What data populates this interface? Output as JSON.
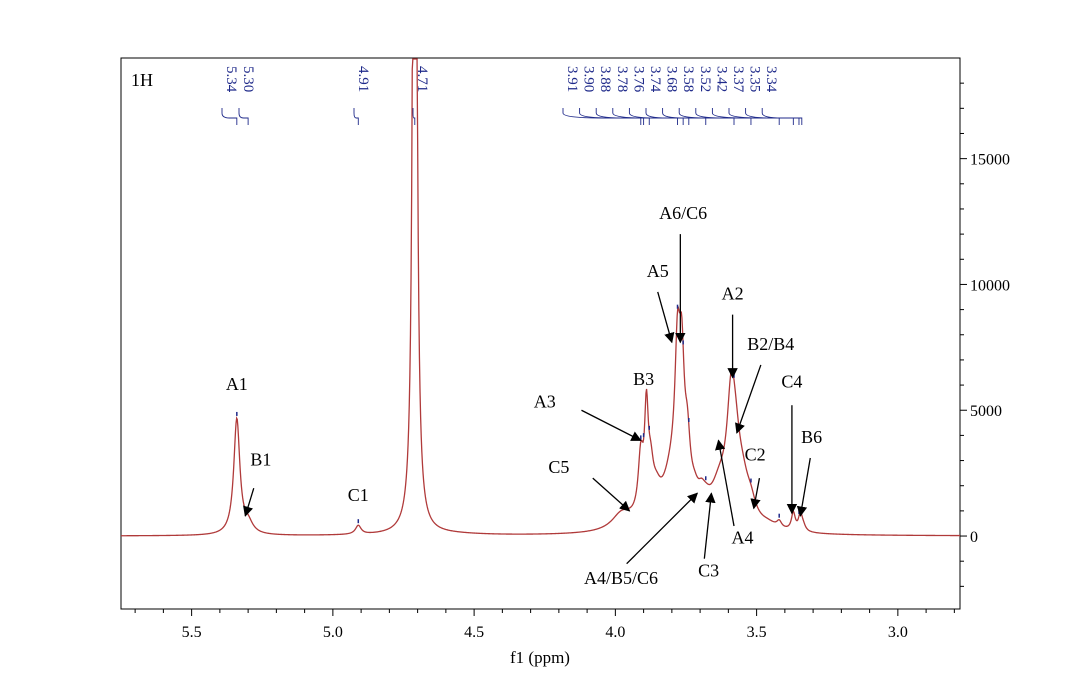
{
  "chart_data": {
    "type": "line",
    "title": "1H",
    "xlabel": "f1 (ppm)",
    "ylabel": "",
    "xlim": [
      5.75,
      2.78
    ],
    "ylim": [
      -2900,
      19000
    ],
    "x_ticks": [
      "5.5",
      "5.0",
      "4.5",
      "4.0",
      "3.5",
      "3.0"
    ],
    "y_ticks": [
      "15000",
      "10000",
      "5000",
      "0"
    ],
    "colors": {
      "spectrum": "#b03a3a",
      "peak_labels": "#1f2a8a",
      "axis": "#000000"
    },
    "peak_picks": [
      "5.34",
      "5.30",
      "4.91",
      "4.71",
      "3.91",
      "3.90",
      "3.88",
      "3.78",
      "3.76",
      "3.74",
      "3.68",
      "3.58",
      "3.52",
      "3.42",
      "3.37",
      "3.35",
      "3.34"
    ],
    "peaks": [
      {
        "x": 5.34,
        "height": 4600,
        "width": 0.013
      },
      {
        "x": 5.3,
        "height": 400,
        "width": 0.02
      },
      {
        "x": 4.91,
        "height": 350,
        "width": 0.012
      },
      {
        "x": 4.71,
        "height": 60000,
        "width": 0.006
      },
      {
        "x": 4.6,
        "height": 60,
        "width": 0.15
      },
      {
        "x": 3.98,
        "height": 500,
        "width": 0.04
      },
      {
        "x": 3.95,
        "height": 250,
        "width": 0.06
      },
      {
        "x": 3.91,
        "height": 2300,
        "width": 0.011
      },
      {
        "x": 3.89,
        "height": 3800,
        "width": 0.008
      },
      {
        "x": 3.875,
        "height": 1500,
        "width": 0.012
      },
      {
        "x": 3.855,
        "height": 800,
        "width": 0.02
      },
      {
        "x": 3.8,
        "height": 2000,
        "width": 0.04
      },
      {
        "x": 3.78,
        "height": 5000,
        "width": 0.011
      },
      {
        "x": 3.765,
        "height": 4800,
        "width": 0.011
      },
      {
        "x": 3.745,
        "height": 2200,
        "width": 0.012
      },
      {
        "x": 3.72,
        "height": 700,
        "width": 0.02
      },
      {
        "x": 3.695,
        "height": 500,
        "width": 0.015
      },
      {
        "x": 3.68,
        "height": 400,
        "width": 0.02
      },
      {
        "x": 3.63,
        "height": 1500,
        "width": 0.04
      },
      {
        "x": 3.59,
        "height": 3900,
        "width": 0.018
      },
      {
        "x": 3.575,
        "height": 1800,
        "width": 0.02
      },
      {
        "x": 3.55,
        "height": 1400,
        "width": 0.03
      },
      {
        "x": 3.52,
        "height": 550,
        "width": 0.02
      },
      {
        "x": 3.46,
        "height": 200,
        "width": 0.04
      },
      {
        "x": 3.42,
        "height": 250,
        "width": 0.01
      },
      {
        "x": 3.37,
        "height": 700,
        "width": 0.008
      },
      {
        "x": 3.345,
        "height": 650,
        "width": 0.008
      },
      {
        "x": 3.335,
        "height": 200,
        "width": 0.01
      }
    ],
    "annotations": [
      {
        "label": "A1",
        "x": 5.34,
        "y": 5800
      },
      {
        "label": "B1",
        "x": 5.255,
        "y": 2800,
        "from": [
          5.28,
          1900
        ],
        "to": [
          5.31,
          800
        ]
      },
      {
        "label": "C1",
        "x": 4.91,
        "y": 1400
      },
      {
        "label": "A3",
        "x": 4.25,
        "y": 5100,
        "from": [
          4.12,
          5000
        ],
        "to": [
          3.91,
          3800
        ]
      },
      {
        "label": "B3",
        "x": 3.9,
        "y": 6000
      },
      {
        "label": "C5",
        "x": 4.2,
        "y": 2500,
        "from": [
          4.08,
          2300
        ],
        "to": [
          3.95,
          1000
        ]
      },
      {
        "label": "A6/C6",
        "x": 3.76,
        "y": 12600,
        "from": [
          3.77,
          12000
        ],
        "to": [
          3.77,
          7700
        ]
      },
      {
        "label": "A5",
        "x": 3.85,
        "y": 10300,
        "from": [
          3.85,
          9700
        ],
        "to": [
          3.8,
          7700
        ]
      },
      {
        "label": "A2",
        "x": 3.585,
        "y": 9400,
        "from": [
          3.585,
          8800
        ],
        "to": [
          3.585,
          6300
        ]
      },
      {
        "label": "B2/B4",
        "x": 3.45,
        "y": 7400,
        "from": [
          3.485,
          6800
        ],
        "to": [
          3.57,
          4100
        ]
      },
      {
        "label": "C4",
        "x": 3.375,
        "y": 5900,
        "from": [
          3.375,
          5200
        ],
        "to": [
          3.375,
          900
        ]
      },
      {
        "label": "B6",
        "x": 3.305,
        "y": 3700,
        "from": [
          3.31,
          3100
        ],
        "to": [
          3.345,
          800
        ]
      },
      {
        "label": "C2",
        "x": 3.505,
        "y": 3000,
        "from": [
          3.49,
          2300
        ],
        "to": [
          3.51,
          1100
        ]
      },
      {
        "label": "A4",
        "x": 3.55,
        "y": -300,
        "from": [
          3.58,
          400
        ],
        "to": [
          3.635,
          3800
        ]
      },
      {
        "label": "C3",
        "x": 3.67,
        "y": -1600,
        "from": [
          3.685,
          -900
        ],
        "to": [
          3.66,
          1700
        ]
      },
      {
        "label": "A4/B5/C6",
        "x": 3.98,
        "y": -1900,
        "from": [
          3.96,
          -1100
        ],
        "to": [
          3.71,
          1700
        ]
      }
    ]
  }
}
